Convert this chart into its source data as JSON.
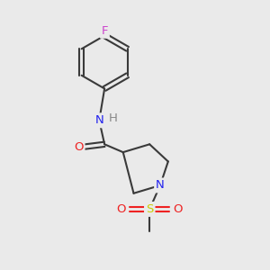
{
  "background_color": "#eaeaea",
  "bond_color": "#3a3a3a",
  "bond_width": 1.5,
  "atom_labels": {
    "F": {
      "color": "#cc44cc",
      "fontsize": 9.5
    },
    "N": {
      "color": "#2222ee",
      "fontsize": 9.5
    },
    "H": {
      "color": "#888888",
      "fontsize": 9.5
    },
    "O": {
      "color": "#ee2222",
      "fontsize": 9.5
    },
    "S": {
      "color": "#cccc00",
      "fontsize": 9.5
    }
  },
  "figsize": [
    3.0,
    3.0
  ],
  "dpi": 100
}
